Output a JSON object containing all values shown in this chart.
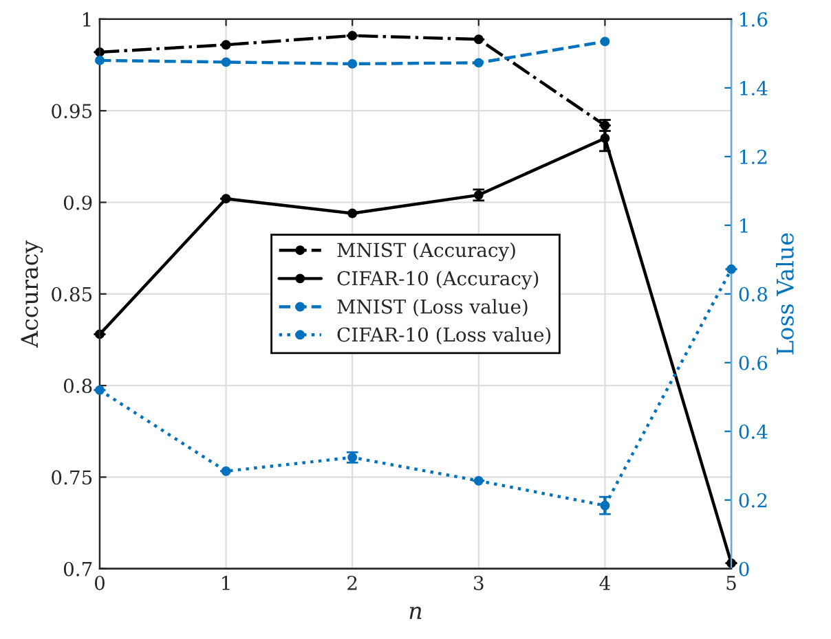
{
  "chart_data": {
    "type": "line",
    "xlabel": "n",
    "ylabel": "Accuracy",
    "y2label": "Loss Value",
    "x": [
      0,
      1,
      2,
      3,
      4,
      5
    ],
    "xlim": [
      0,
      5
    ],
    "xticks": [
      0,
      1,
      2,
      3,
      4,
      5
    ],
    "ylim": [
      0.7,
      1
    ],
    "yticks": [
      0.7,
      0.75,
      0.8,
      0.85,
      0.9,
      0.95,
      1
    ],
    "y2lim": [
      0,
      1.6
    ],
    "y2ticks": [
      0,
      0.2,
      0.4,
      0.6,
      0.8,
      1,
      1.2,
      1.4,
      1.6
    ],
    "grid": true,
    "legend": "center",
    "marker": "circle",
    "series": [
      {
        "name": "MNIST (Accuracy)",
        "color": "#000000",
        "line_style": "dashdot",
        "values": [
          0.982,
          0.986,
          0.991,
          0.989,
          0.942,
          null
        ],
        "errors": [
          null,
          null,
          null,
          null,
          0.003,
          null
        ]
      },
      {
        "name": "CIFAR-10 (Accuracy)",
        "color": "#000000",
        "line_style": "solid",
        "values": [
          0.828,
          0.902,
          0.894,
          0.904,
          0.935,
          0.703
        ],
        "errors": [
          null,
          null,
          null,
          0.003,
          0.007,
          null
        ]
      },
      {
        "name": "MNIST (Loss value)",
        "color": "#0072bd",
        "line_style": "dashed",
        "axis": "y2",
        "values": [
          1.48,
          1.475,
          1.47,
          1.473,
          1.535,
          null
        ]
      },
      {
        "name": "CIFAR-10 (Loss value)",
        "color": "#0072bd",
        "line_style": "dotted",
        "axis": "y2",
        "values": [
          0.52,
          0.284,
          0.324,
          0.256,
          0.184,
          0.872
        ],
        "errors": [
          null,
          null,
          0.015,
          null,
          0.025,
          null
        ]
      }
    ]
  }
}
